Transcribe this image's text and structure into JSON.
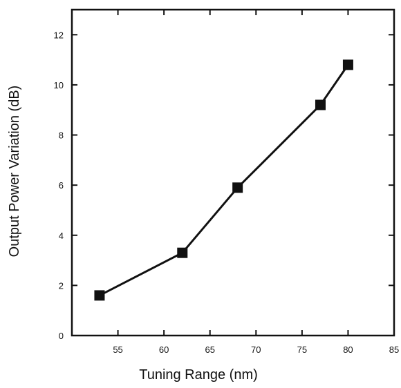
{
  "chart_data": {
    "type": "line",
    "title": "",
    "xlabel": "Tuning Range (nm)",
    "ylabel": "Output Power Variation (dB)",
    "xlim": [
      50,
      85
    ],
    "ylim": [
      0,
      13
    ],
    "xticks": [
      55,
      60,
      65,
      70,
      75,
      80,
      85
    ],
    "yticks": [
      0,
      2,
      4,
      6,
      8,
      10,
      12
    ],
    "grid": false,
    "marker": "square",
    "series": [
      {
        "x": [
          53,
          62,
          68,
          77,
          80
        ],
        "y": [
          1.6,
          3.3,
          5.9,
          9.2,
          10.8
        ]
      }
    ],
    "colors": {
      "line": "#111111",
      "marker": "#111111",
      "axis": "#111111"
    }
  }
}
